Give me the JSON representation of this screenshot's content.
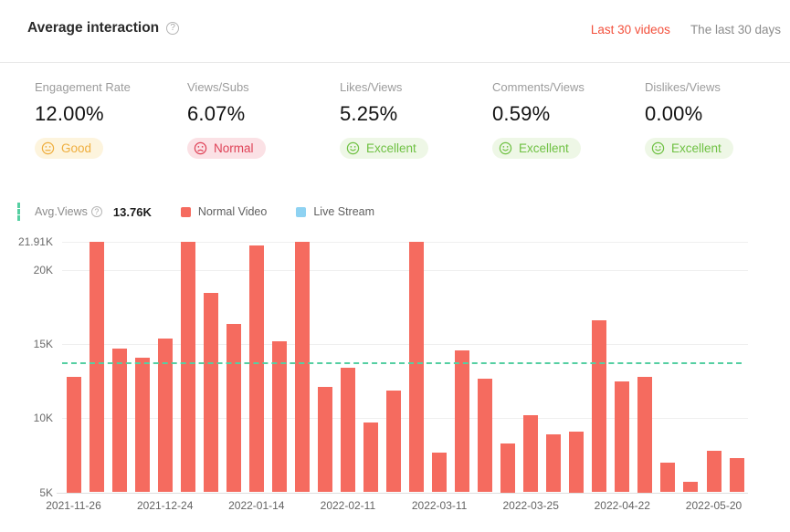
{
  "header": {
    "title": "Average interaction",
    "help_icon": "question-mark",
    "tabs": [
      {
        "label": "Last 30 videos",
        "active": true,
        "color": "#f3503c"
      },
      {
        "label": "The last 30 days",
        "active": false,
        "color": "#8c8c8c"
      }
    ]
  },
  "metrics": [
    {
      "label": "Engagement Rate",
      "value": "12.00%",
      "rating": "Good",
      "mood": "neutral",
      "badge_fg": "#efae3e",
      "badge_bg": "#fdf4dd"
    },
    {
      "label": "Views/Subs",
      "value": "6.07%",
      "rating": "Normal",
      "mood": "sad",
      "badge_fg": "#df4257",
      "badge_bg": "#fbe1e5"
    },
    {
      "label": "Likes/Views",
      "value": "5.25%",
      "rating": "Excellent",
      "mood": "happy",
      "badge_fg": "#6fc143",
      "badge_bg": "#eef7e6"
    },
    {
      "label": "Comments/Views",
      "value": "0.59%",
      "rating": "Excellent",
      "mood": "happy",
      "badge_fg": "#6fc143",
      "badge_bg": "#eef7e6"
    },
    {
      "label": "Dislikes/Views",
      "value": "0.00%",
      "rating": "Excellent",
      "mood": "happy",
      "badge_fg": "#6fc143",
      "badge_bg": "#eef7e6"
    }
  ],
  "legend": {
    "avg_label": "Avg.Views",
    "avg_value": "13.76K",
    "items": [
      {
        "label": "Normal Video",
        "color": "#f56b5f"
      },
      {
        "label": "Live Stream",
        "color": "#8ed2f2"
      }
    ]
  },
  "chart_data": {
    "type": "bar",
    "title": "",
    "unit": "K views",
    "categories": [
      "2021-11-26",
      "",
      "",
      "",
      "2021-12-24",
      "",
      "",
      "",
      "2022-01-14",
      "",
      "",
      "",
      "2022-02-11",
      "",
      "",
      "",
      "2022-03-11",
      "",
      "",
      "",
      "2022-03-25",
      "",
      "",
      "",
      "2022-04-22",
      "",
      "",
      "",
      "2022-05-20",
      ""
    ],
    "series": [
      {
        "name": "Normal Video",
        "color": "#f56b5f",
        "values": [
          12.8,
          21.91,
          14.7,
          14.1,
          15.4,
          21.91,
          18.5,
          16.4,
          21.7,
          15.2,
          21.91,
          12.1,
          13.4,
          9.7,
          11.9,
          21.91,
          7.7,
          14.6,
          12.7,
          8.3,
          10.2,
          8.9,
          9.1,
          16.6,
          12.5,
          12.8,
          7.0,
          5.7,
          7.8,
          7.3
        ]
      },
      {
        "name": "Live Stream",
        "color": "#8ed2f2",
        "values": []
      }
    ],
    "ylim": [
      5,
      21.91
    ],
    "y_ticks": [
      {
        "value": 21.91,
        "label": "21.91K"
      },
      {
        "value": 20,
        "label": "20K"
      },
      {
        "value": 15,
        "label": "15K"
      },
      {
        "value": 10,
        "label": "10K"
      },
      {
        "value": 5,
        "label": "5K"
      }
    ],
    "avg_line": {
      "label": "Avg.Views",
      "value": 13.76,
      "display": "13.76K",
      "color": "#55cfa2"
    },
    "grid": true,
    "legend_position": "top"
  }
}
